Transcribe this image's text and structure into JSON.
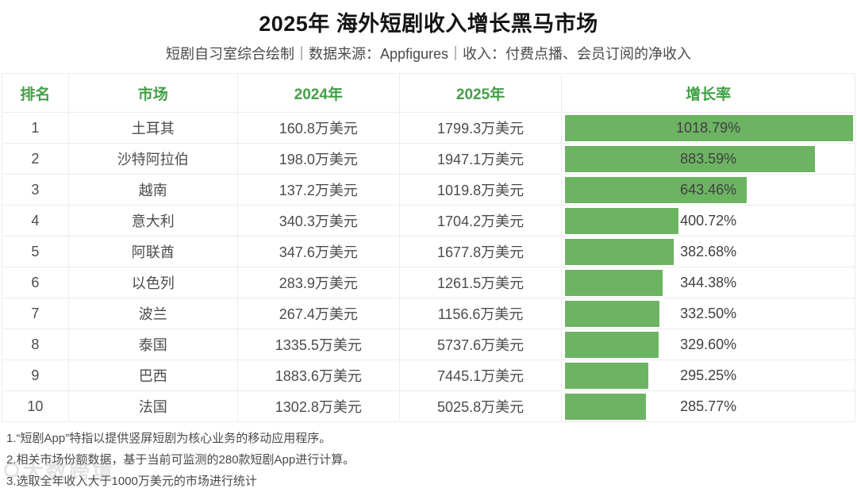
{
  "page": {
    "title": "2025年 海外短剧收入增长黑马市场",
    "subtitle": "短剧自习室综合绘制｜数据来源：Appfigures｜收入：付费点播、会员订阅的净收入"
  },
  "table": {
    "headers": [
      "排名",
      "市场",
      "2024年",
      "2025年",
      "增长率"
    ],
    "rows": [
      {
        "rank": "1",
        "market": "土耳其",
        "y2024": "160.8万美元",
        "y2025": "1799.3万美元",
        "growth": "1018.79%",
        "growth_num": 1018.79
      },
      {
        "rank": "2",
        "market": "沙特阿拉伯",
        "y2024": "198.0万美元",
        "y2025": "1947.1万美元",
        "growth": "883.59%",
        "growth_num": 883.59
      },
      {
        "rank": "3",
        "market": "越南",
        "y2024": "137.2万美元",
        "y2025": "1019.8万美元",
        "growth": "643.46%",
        "growth_num": 643.46
      },
      {
        "rank": "4",
        "market": "意大利",
        "y2024": "340.3万美元",
        "y2025": "1704.2万美元",
        "growth": "400.72%",
        "growth_num": 400.72
      },
      {
        "rank": "5",
        "market": "阿联酋",
        "y2024": "347.6万美元",
        "y2025": "1677.8万美元",
        "growth": "382.68%",
        "growth_num": 382.68
      },
      {
        "rank": "6",
        "market": "以色列",
        "y2024": "283.9万美元",
        "y2025": "1261.5万美元",
        "growth": "344.38%",
        "growth_num": 344.38
      },
      {
        "rank": "7",
        "market": "波兰",
        "y2024": "267.4万美元",
        "y2025": "1156.6万美元",
        "growth": "332.50%",
        "growth_num": 332.5
      },
      {
        "rank": "8",
        "market": "泰国",
        "y2024": "1335.5万美元",
        "y2025": "5737.6万美元",
        "growth": "329.60%",
        "growth_num": 329.6
      },
      {
        "rank": "9",
        "market": "巴西",
        "y2024": "1883.6万美元",
        "y2025": "7445.1万美元",
        "growth": "295.25%",
        "growth_num": 295.25
      },
      {
        "rank": "10",
        "market": "法国",
        "y2024": "1302.8万美元",
        "y2025": "5025.8万美元",
        "growth": "285.77%",
        "growth_num": 285.77
      }
    ]
  },
  "footnotes": [
    "1.“短剧App”特指以提供竖屏短剧为核心业务的移动应用程序。",
    "2.相关市场份额数据，基于当前可监测的280款短剧App进行计算。",
    "3.选取全年收入大于1000万美元的市场进行统计"
  ],
  "watermark": "大数跨境",
  "colors": {
    "header_green": "#43a047",
    "bar_green": "#6cb462",
    "border": "#ececec",
    "title": "#151515",
    "body_text": "#4c4c4c"
  },
  "chart_data": {
    "type": "bar",
    "orientation": "horizontal",
    "title": "2025年 海外短剧收入增长黑马市场",
    "subtitle": "短剧自习室综合绘制｜数据来源：Appfigures｜收入：付费点播、会员订阅的净收入",
    "categories": [
      "土耳其",
      "沙特阿拉伯",
      "越南",
      "意大利",
      "阿联酋",
      "以色列",
      "波兰",
      "泰国",
      "巴西",
      "法国"
    ],
    "series": [
      {
        "name": "2024年收入(万美元)",
        "values": [
          160.8,
          198.0,
          137.2,
          340.3,
          347.6,
          283.9,
          267.4,
          1335.5,
          1883.6,
          1302.8
        ]
      },
      {
        "name": "2025年收入(万美元)",
        "values": [
          1799.3,
          1947.1,
          1019.8,
          1704.2,
          1677.8,
          1261.5,
          1156.6,
          5737.6,
          7445.1,
          5025.8
        ]
      },
      {
        "name": "增长率(%)",
        "values": [
          1018.79,
          883.59,
          643.46,
          400.72,
          382.68,
          344.38,
          332.5,
          329.6,
          295.25,
          285.77
        ]
      }
    ],
    "max_value": 1018.79,
    "bar_series": "增长率(%)",
    "bar_color": "#6cb462",
    "grid": false,
    "legend": false
  }
}
